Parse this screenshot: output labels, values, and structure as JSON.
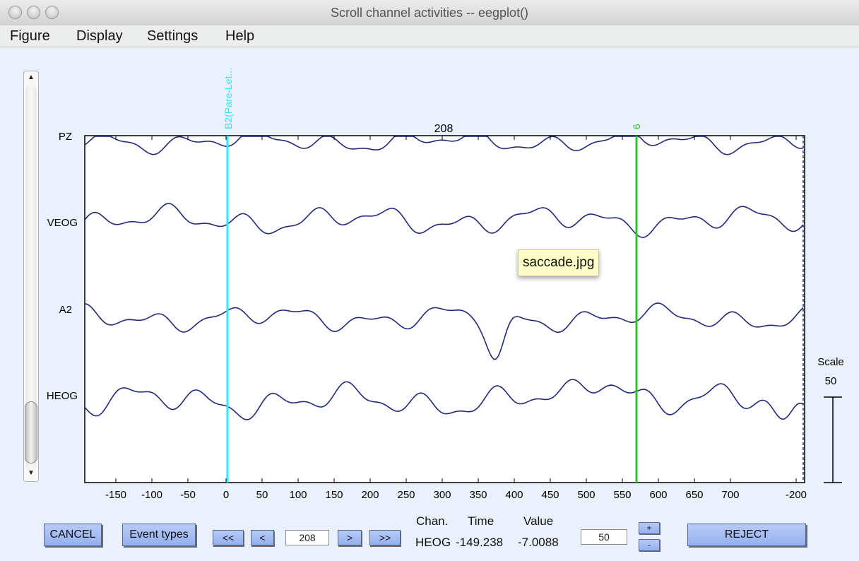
{
  "window": {
    "title": "Scroll channel activities -- eegplot()"
  },
  "menu": [
    "Figure",
    "Display",
    "Settings",
    "Help"
  ],
  "scroll_arrows": {
    "up": "▲",
    "down": "▼"
  },
  "plot": {
    "top_label": "208",
    "channels": [
      "PZ",
      "VEOG",
      "A2",
      "HEOG"
    ],
    "x_ticks": [
      "-150",
      "-100",
      "-50",
      "0",
      "50",
      "100",
      "150",
      "200",
      "250",
      "300",
      "350",
      "400",
      "450",
      "500",
      "550",
      "600",
      "650",
      "700",
      "-200"
    ],
    "events": [
      {
        "label": "B2(Pare-Let...",
        "color": "#33e8f0"
      },
      {
        "label": "6",
        "color": "#30c030"
      }
    ],
    "trace_color": "#202a78",
    "scale": {
      "title": "Scale",
      "value": "50"
    }
  },
  "tooltip": "saccade.jpg",
  "controls": {
    "cancel": "CANCEL",
    "event_types": "Event types",
    "nav_first": "<<",
    "nav_prev": "<",
    "position": "208",
    "nav_next": ">",
    "nav_last": ">>",
    "info_headers": {
      "chan": "Chan.",
      "time": "Time",
      "value": "Value"
    },
    "info_values": {
      "chan": "HEOG",
      "time": "-149.238",
      "value": "-7.0088"
    },
    "scale_value": "50",
    "plus": "+",
    "minus": "-",
    "reject": "REJECT"
  }
}
